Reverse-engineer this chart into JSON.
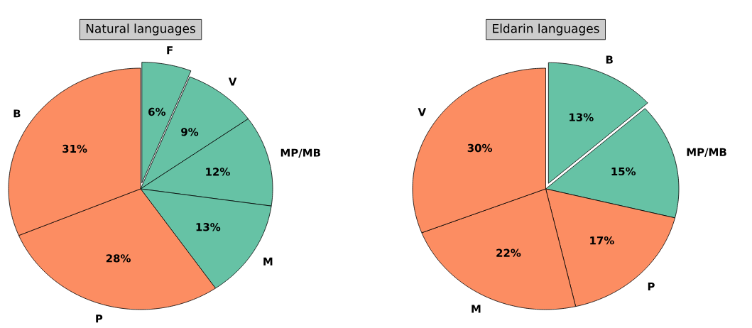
{
  "chart_data": [
    {
      "type": "pie",
      "title": "Natural languages",
      "categories": [
        "F",
        "V",
        "MP/MB",
        "M",
        "P",
        "B"
      ],
      "values": [
        6,
        9,
        12,
        13,
        28,
        31
      ],
      "colors": [
        "#66c2a5",
        "#66c2a5",
        "#66c2a5",
        "#66c2a5",
        "#fc8d62",
        "#fc8d62"
      ],
      "value_labels": [
        "6%",
        "9%",
        "12%",
        "13%",
        "28%",
        "31%"
      ]
    },
    {
      "type": "pie",
      "title": "Eldarin languages",
      "categories": [
        "B",
        "MP/MB",
        "P",
        "M",
        "V"
      ],
      "values": [
        13,
        15,
        17,
        22,
        30
      ],
      "colors": [
        "#66c2a5",
        "#66c2a5",
        "#fc8d62",
        "#fc8d62",
        "#fc8d62"
      ],
      "value_labels": [
        "13%",
        "15%",
        "17%",
        "22%",
        "30%"
      ]
    }
  ]
}
